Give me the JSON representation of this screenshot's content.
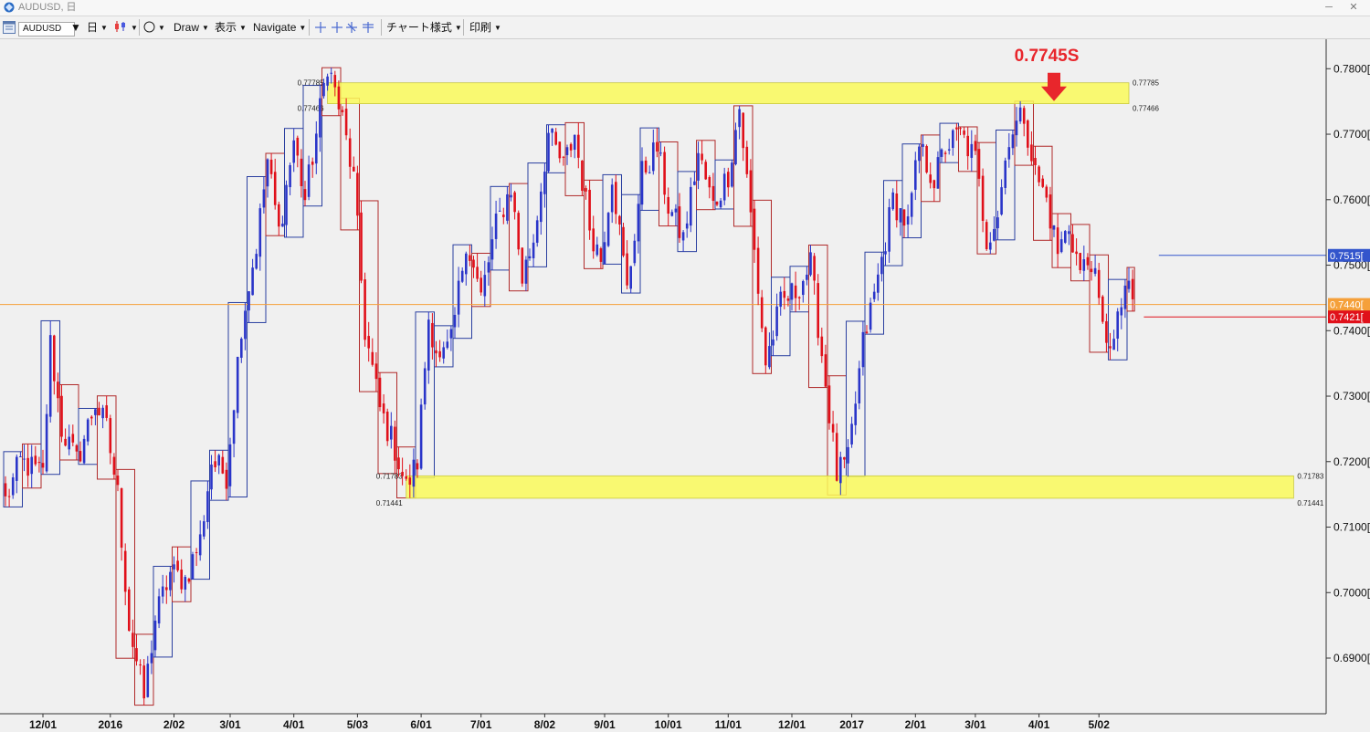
{
  "window": {
    "title": "AUDUSD, 日",
    "minimize_glyph": "─",
    "close_glyph": "✕"
  },
  "toolbar": {
    "symbol": "AUDUSD",
    "timeframe": "日",
    "draw_label": "Draw",
    "view_label": "表示",
    "navigate_label": "Navigate",
    "chart_style_label": "チャート様式",
    "print_label": "印刷",
    "dropdown_glyph": "▼",
    "icons": [
      "chart-window-icon",
      "candle-type-icon",
      "circle-draw-icon",
      "crosshair-tools-icon"
    ]
  },
  "colors": {
    "background": "#f0f0f0",
    "bull_candle": "#2a35c9",
    "bear_candle": "#e0101a",
    "bull_box": "#2a3fa0",
    "bear_box": "#b02a2a",
    "zone_fill": "#fafa5a",
    "annotation": "#e8262c",
    "current_price_line": "#f0a040"
  },
  "chart_data": {
    "type": "candlestick",
    "symbol": "AUDUSD",
    "timeframe": "日",
    "ylim": [
      0.6815,
      0.7845
    ],
    "y_ticks": [
      {
        "value": 0.78,
        "label": "0.7800[0"
      },
      {
        "value": 0.77,
        "label": "0.7700[0"
      },
      {
        "value": 0.76,
        "label": "0.7600[0"
      },
      {
        "value": 0.75,
        "label": "0.7500[0"
      },
      {
        "value": 0.74,
        "label": "0.7400[0"
      },
      {
        "value": 0.73,
        "label": "0.7300[0"
      },
      {
        "value": 0.72,
        "label": "0.7200[0"
      },
      {
        "value": 0.71,
        "label": "0.7100[0"
      },
      {
        "value": 0.7,
        "label": "0.7000[0"
      },
      {
        "value": 0.69,
        "label": "0.6900[0"
      }
    ],
    "x_ticks": [
      {
        "label": "12/01",
        "idx": 10
      },
      {
        "label": "2016",
        "idx": 28
      },
      {
        "label": "2/02",
        "idx": 45
      },
      {
        "label": "3/01",
        "idx": 60
      },
      {
        "label": "4/01",
        "idx": 77
      },
      {
        "label": "5/03",
        "idx": 94
      },
      {
        "label": "6/01",
        "idx": 111
      },
      {
        "label": "7/01",
        "idx": 127
      },
      {
        "label": "8/02",
        "idx": 144
      },
      {
        "label": "9/01",
        "idx": 160
      },
      {
        "label": "10/01",
        "idx": 177
      },
      {
        "label": "11/01",
        "idx": 193
      },
      {
        "label": "12/01",
        "idx": 210
      },
      {
        "label": "2017",
        "idx": 226
      },
      {
        "label": "2/01",
        "idx": 243
      },
      {
        "label": "3/01",
        "idx": 259
      },
      {
        "label": "4/01",
        "idx": 276
      },
      {
        "label": "5/02",
        "idx": 292
      }
    ],
    "anchors": [
      [
        0,
        0.714
      ],
      [
        4,
        0.72
      ],
      [
        10,
        0.718
      ],
      [
        12,
        0.738
      ],
      [
        15,
        0.725
      ],
      [
        19,
        0.72
      ],
      [
        24,
        0.729
      ],
      [
        27,
        0.725
      ],
      [
        30,
        0.715
      ],
      [
        33,
        0.695
      ],
      [
        37,
        0.684
      ],
      [
        40,
        0.696
      ],
      [
        44,
        0.703
      ],
      [
        48,
        0.702
      ],
      [
        52,
        0.708
      ],
      [
        55,
        0.72
      ],
      [
        59,
        0.718
      ],
      [
        63,
        0.741
      ],
      [
        67,
        0.753
      ],
      [
        70,
        0.766
      ],
      [
        73,
        0.755
      ],
      [
        77,
        0.769
      ],
      [
        80,
        0.76
      ],
      [
        83,
        0.77
      ],
      [
        86,
        0.781
      ],
      [
        90,
        0.772
      ],
      [
        93,
        0.763
      ],
      [
        96,
        0.74
      ],
      [
        100,
        0.728
      ],
      [
        104,
        0.722
      ],
      [
        107,
        0.716
      ],
      [
        110,
        0.72
      ],
      [
        113,
        0.742
      ],
      [
        116,
        0.735
      ],
      [
        119,
        0.738
      ],
      [
        123,
        0.754
      ],
      [
        127,
        0.745
      ],
      [
        131,
        0.756
      ],
      [
        135,
        0.762
      ],
      [
        138,
        0.748
      ],
      [
        141,
        0.754
      ],
      [
        145,
        0.77
      ],
      [
        149,
        0.765
      ],
      [
        152,
        0.77
      ],
      [
        156,
        0.756
      ],
      [
        159,
        0.751
      ],
      [
        162,
        0.764
      ],
      [
        166,
        0.746
      ],
      [
        170,
        0.764
      ],
      [
        174,
        0.768
      ],
      [
        177,
        0.759
      ],
      [
        181,
        0.754
      ],
      [
        185,
        0.767
      ],
      [
        189,
        0.759
      ],
      [
        193,
        0.764
      ],
      [
        196,
        0.774
      ],
      [
        200,
        0.752
      ],
      [
        203,
        0.735
      ],
      [
        207,
        0.744
      ],
      [
        211,
        0.746
      ],
      [
        215,
        0.75
      ],
      [
        219,
        0.732
      ],
      [
        222,
        0.718
      ],
      [
        225,
        0.72
      ],
      [
        229,
        0.738
      ],
      [
        233,
        0.748
      ],
      [
        237,
        0.76
      ],
      [
        241,
        0.756
      ],
      [
        244,
        0.768
      ],
      [
        248,
        0.763
      ],
      [
        251,
        0.768
      ],
      [
        255,
        0.77
      ],
      [
        259,
        0.766
      ],
      [
        262,
        0.754
      ],
      [
        265,
        0.758
      ],
      [
        268,
        0.77
      ],
      [
        272,
        0.773
      ],
      [
        275,
        0.764
      ],
      [
        278,
        0.76
      ],
      [
        281,
        0.752
      ],
      [
        284,
        0.756
      ],
      [
        287,
        0.749
      ],
      [
        290,
        0.751
      ],
      [
        293,
        0.74
      ],
      [
        296,
        0.738
      ],
      [
        299,
        0.747
      ],
      [
        301,
        0.744
      ]
    ],
    "series_bar_count": 302,
    "zones": [
      {
        "name": "upper",
        "top": 0.77785,
        "bottom": 0.77466,
        "top_label": "0.77785",
        "bottom_label": "0.77466",
        "from_idx": 86,
        "to_idx": 300
      },
      {
        "name": "lower",
        "top": 0.71783,
        "bottom": 0.71441,
        "top_label": "0.71783",
        "bottom_label": "0.71441",
        "from_idx": 107,
        "to_idx": 344
      }
    ],
    "annotation": {
      "text": "0.7745S",
      "at_idx": 280,
      "price": 0.7745
    },
    "price_markers": [
      {
        "value": 0.7515,
        "label": "0.7515[",
        "color": "#3355cc",
        "line_from_idx": 308
      },
      {
        "value": 0.744,
        "label": "0.7440[",
        "color": "#f5a03a",
        "full_width": true
      },
      {
        "value": 0.7421,
        "label": "0.7421[",
        "color": "#e0101a",
        "line_from_idx": 304
      }
    ]
  }
}
